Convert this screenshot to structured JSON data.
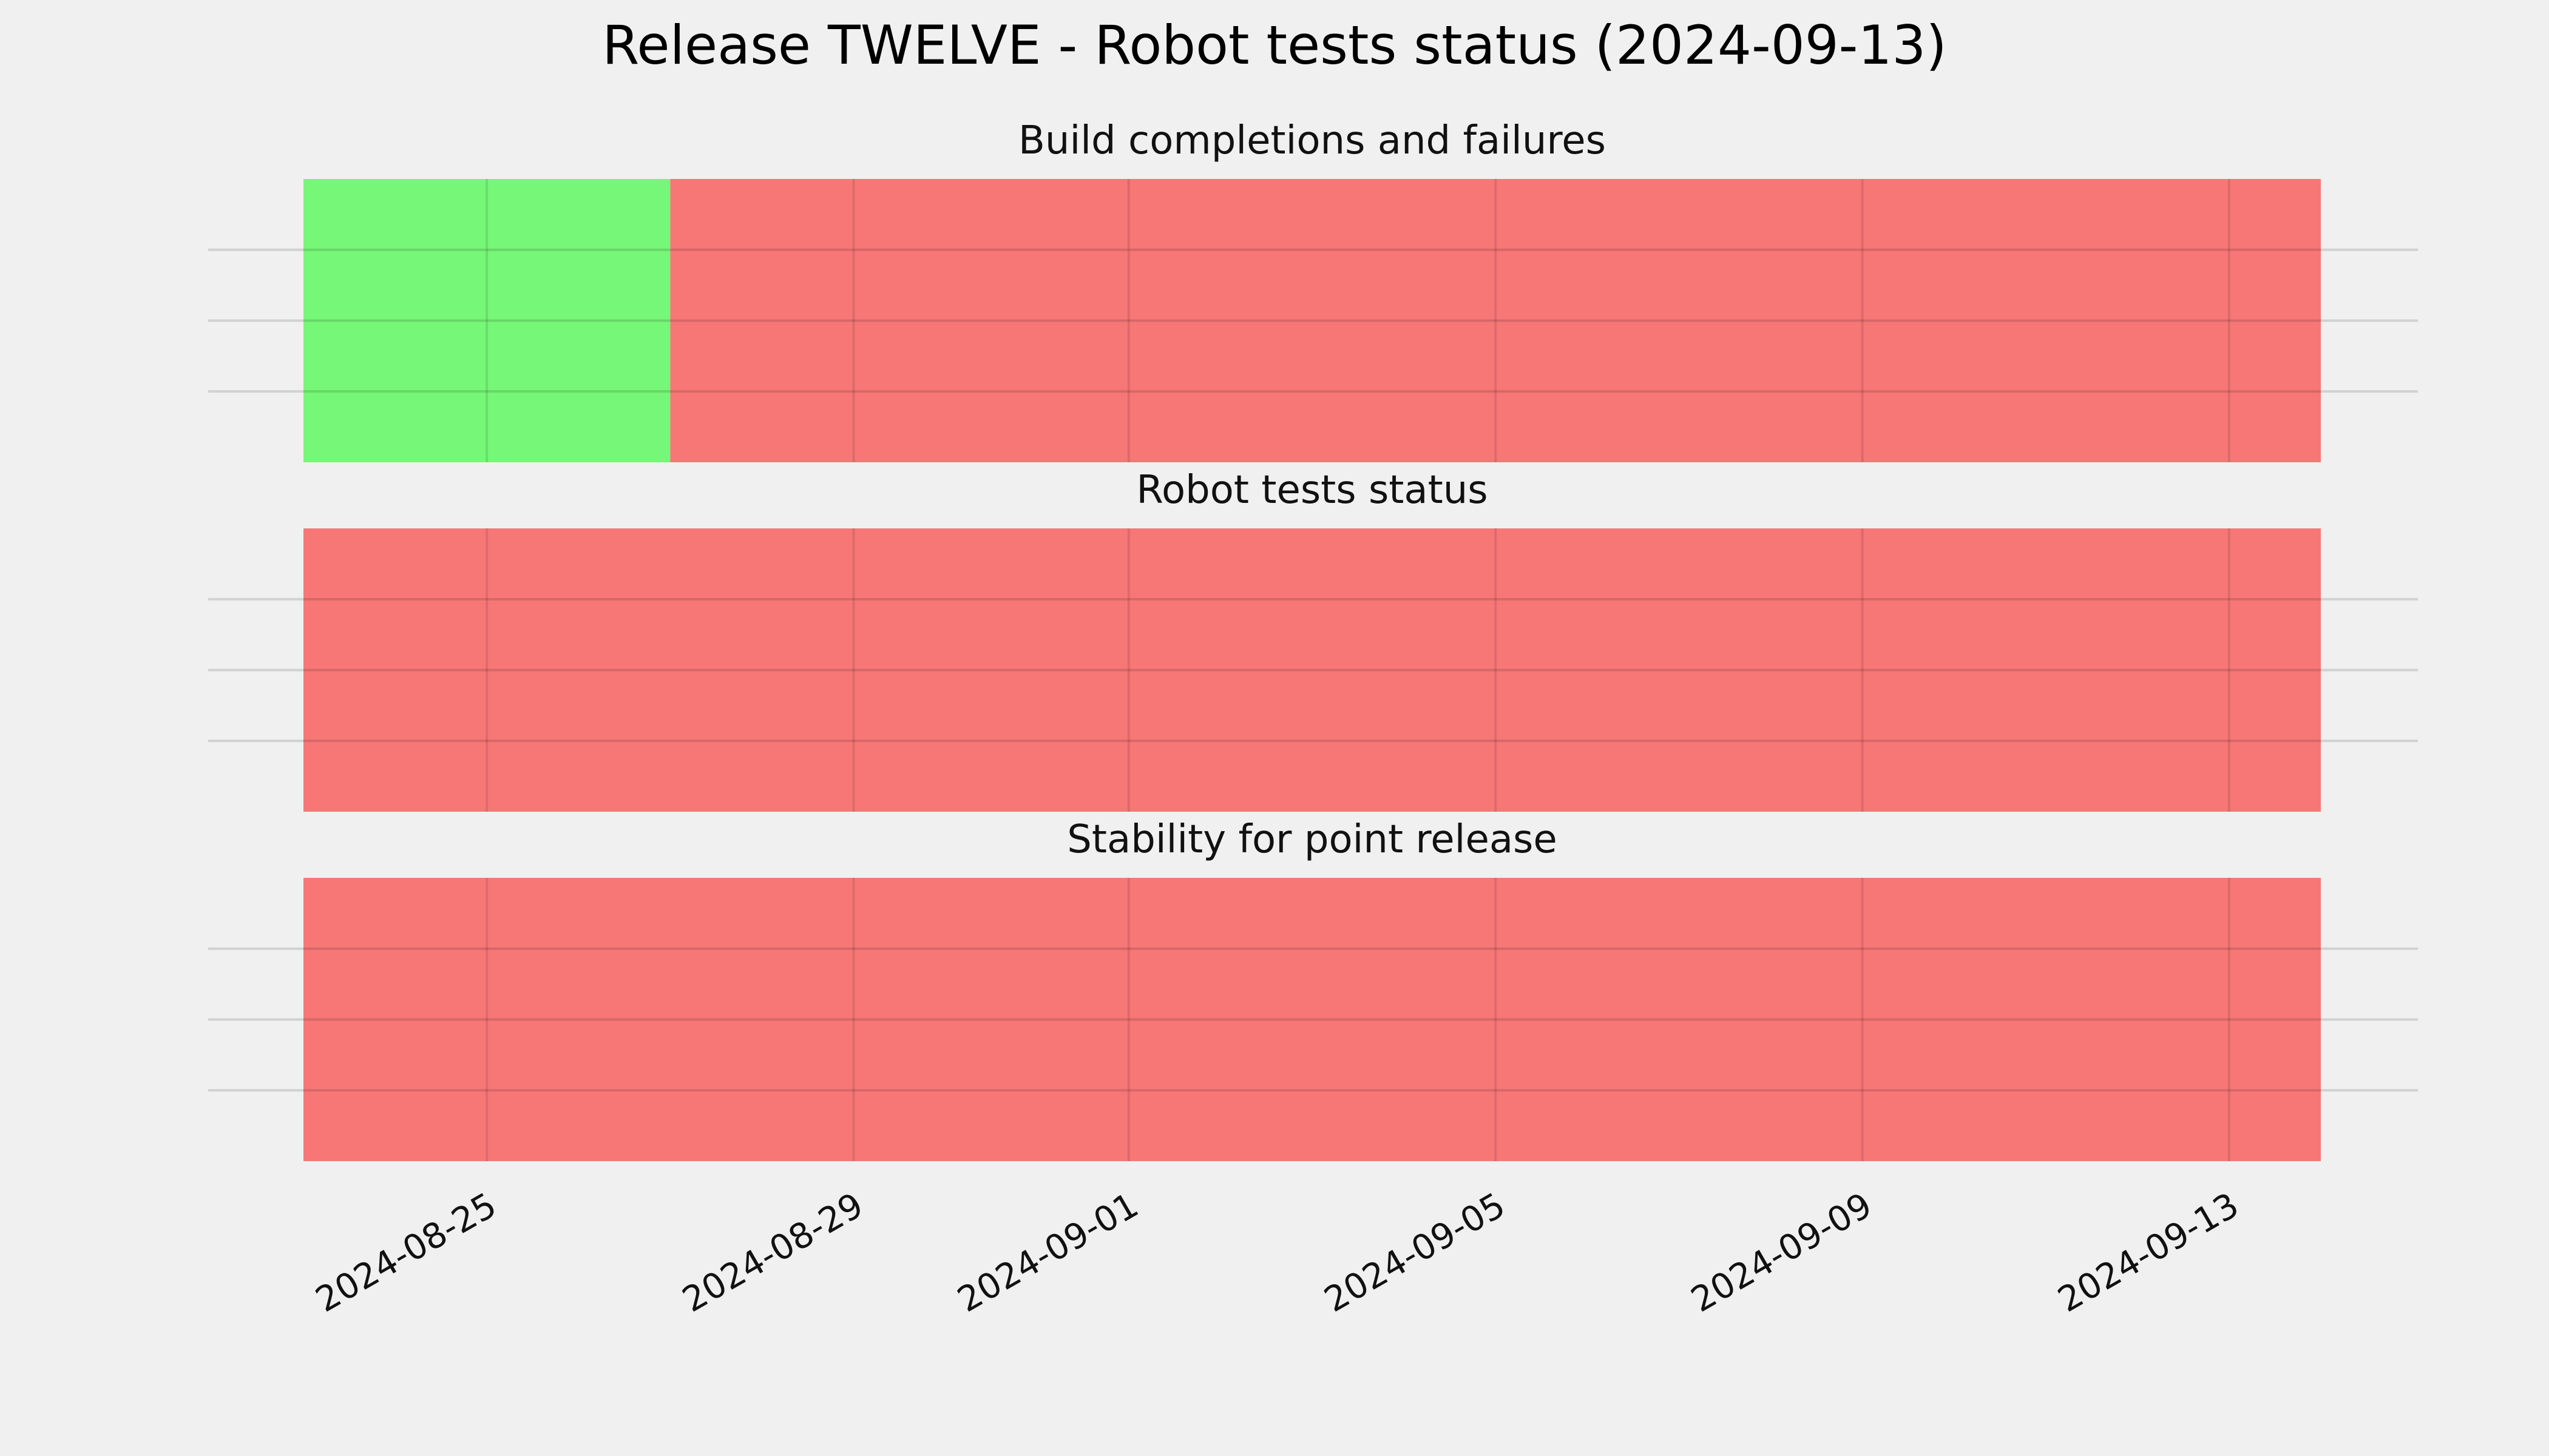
{
  "figure": {
    "title": "Release TWELVE - Robot tests status (2024-09-13)",
    "background": "#f0f0f0"
  },
  "chart_data": {
    "type": "timeline",
    "x_axis": {
      "range": [
        "2024-08-23",
        "2024-09-14"
      ],
      "ticks": [
        "2024-08-25",
        "2024-08-29",
        "2024-09-01",
        "2024-09-05",
        "2024-09-09",
        "2024-09-13"
      ],
      "grid": true
    },
    "colors": {
      "success": "#77f777",
      "failure": "#f77777"
    },
    "panels": [
      {
        "title": "Build completions and failures",
        "segments": [
          {
            "start": "2024-08-23",
            "end": "2024-08-27",
            "status": "success"
          },
          {
            "start": "2024-08-27",
            "end": "2024-09-14",
            "status": "failure"
          }
        ]
      },
      {
        "title": "Robot tests status",
        "segments": [
          {
            "start": "2024-08-23",
            "end": "2024-09-14",
            "status": "failure"
          }
        ]
      },
      {
        "title": "Stability for point release",
        "segments": [
          {
            "start": "2024-08-23",
            "end": "2024-09-14",
            "status": "failure"
          }
        ]
      }
    ]
  }
}
